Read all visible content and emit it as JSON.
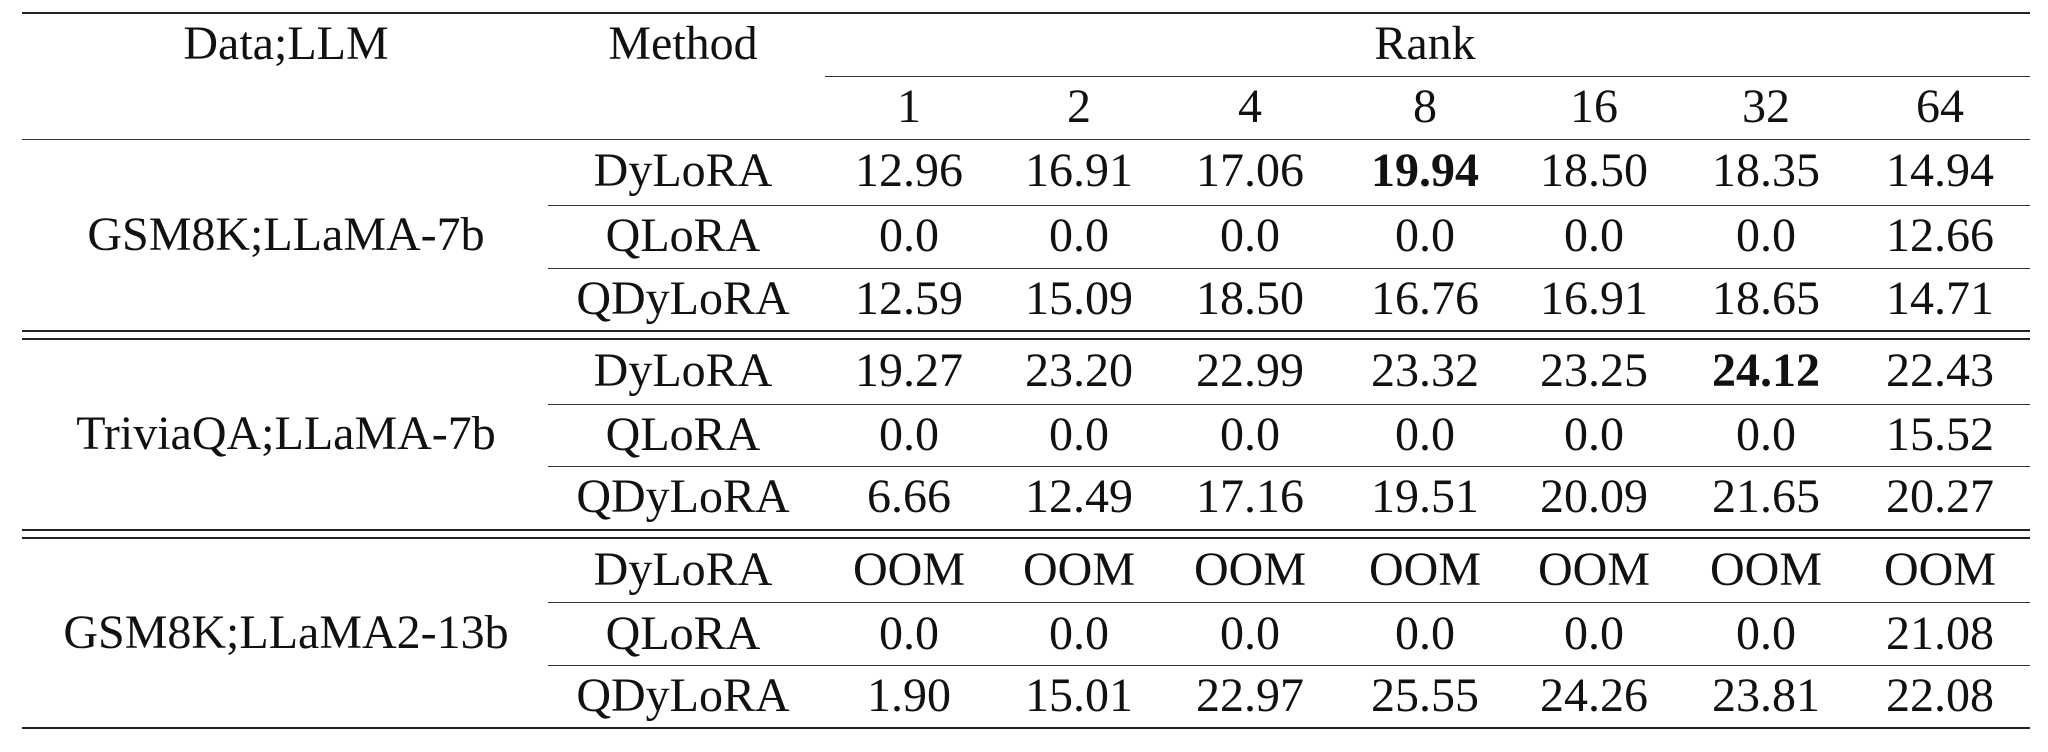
{
  "table": {
    "header": {
      "data_llm": "Data;LLM",
      "method": "Method",
      "rank": "Rank",
      "ranks": [
        "1",
        "2",
        "4",
        "8",
        "16",
        "32",
        "64"
      ]
    },
    "groups": [
      {
        "label": "GSM8K;LLaMA-7b",
        "rows": [
          {
            "method": "DyLoRA",
            "values": [
              "12.96",
              "16.91",
              "17.06",
              "19.94",
              "18.50",
              "18.35",
              "14.94"
            ],
            "bold": [
              false,
              false,
              false,
              true,
              false,
              false,
              false
            ]
          },
          {
            "method": "QLoRA",
            "values": [
              "0.0",
              "0.0",
              "0.0",
              "0.0",
              "0.0",
              "0.0",
              "12.66"
            ],
            "bold": [
              false,
              false,
              false,
              false,
              false,
              false,
              false
            ]
          },
          {
            "method": "QDyLoRA",
            "values": [
              "12.59",
              "15.09",
              "18.50",
              "16.76",
              "16.91",
              "18.65",
              "14.71"
            ],
            "bold": [
              false,
              false,
              false,
              false,
              false,
              false,
              false
            ]
          }
        ]
      },
      {
        "label": "TriviaQA;LLaMA-7b",
        "rows": [
          {
            "method": "DyLoRA",
            "values": [
              "19.27",
              "23.20",
              "22.99",
              "23.32",
              "23.25",
              "24.12",
              "22.43"
            ],
            "bold": [
              false,
              false,
              false,
              false,
              false,
              true,
              false
            ]
          },
          {
            "method": "QLoRA",
            "values": [
              "0.0",
              "0.0",
              "0.0",
              "0.0",
              "0.0",
              "0.0",
              "15.52"
            ],
            "bold": [
              false,
              false,
              false,
              false,
              false,
              false,
              false
            ]
          },
          {
            "method": "QDyLoRA",
            "values": [
              "6.66",
              "12.49",
              "17.16",
              "19.51",
              "20.09",
              "21.65",
              "20.27"
            ],
            "bold": [
              false,
              false,
              false,
              false,
              false,
              false,
              false
            ]
          }
        ]
      },
      {
        "label": "GSM8K;LLaMA2-13b",
        "rows": [
          {
            "method": "DyLoRA",
            "values": [
              "OOM",
              "OOM",
              "OOM",
              "OOM",
              "OOM",
              "OOM",
              "OOM"
            ],
            "bold": [
              false,
              false,
              false,
              false,
              false,
              false,
              false
            ]
          },
          {
            "method": "QLoRA",
            "values": [
              "0.0",
              "0.0",
              "0.0",
              "0.0",
              "0.0",
              "0.0",
              "21.08"
            ],
            "bold": [
              false,
              false,
              false,
              false,
              false,
              false,
              false
            ]
          },
          {
            "method": "QDyLoRA",
            "values": [
              "1.90",
              "15.01",
              "22.97",
              "25.55",
              "24.26",
              "23.81",
              "22.08"
            ],
            "bold": [
              false,
              false,
              false,
              false,
              false,
              false,
              false
            ]
          }
        ]
      }
    ]
  }
}
